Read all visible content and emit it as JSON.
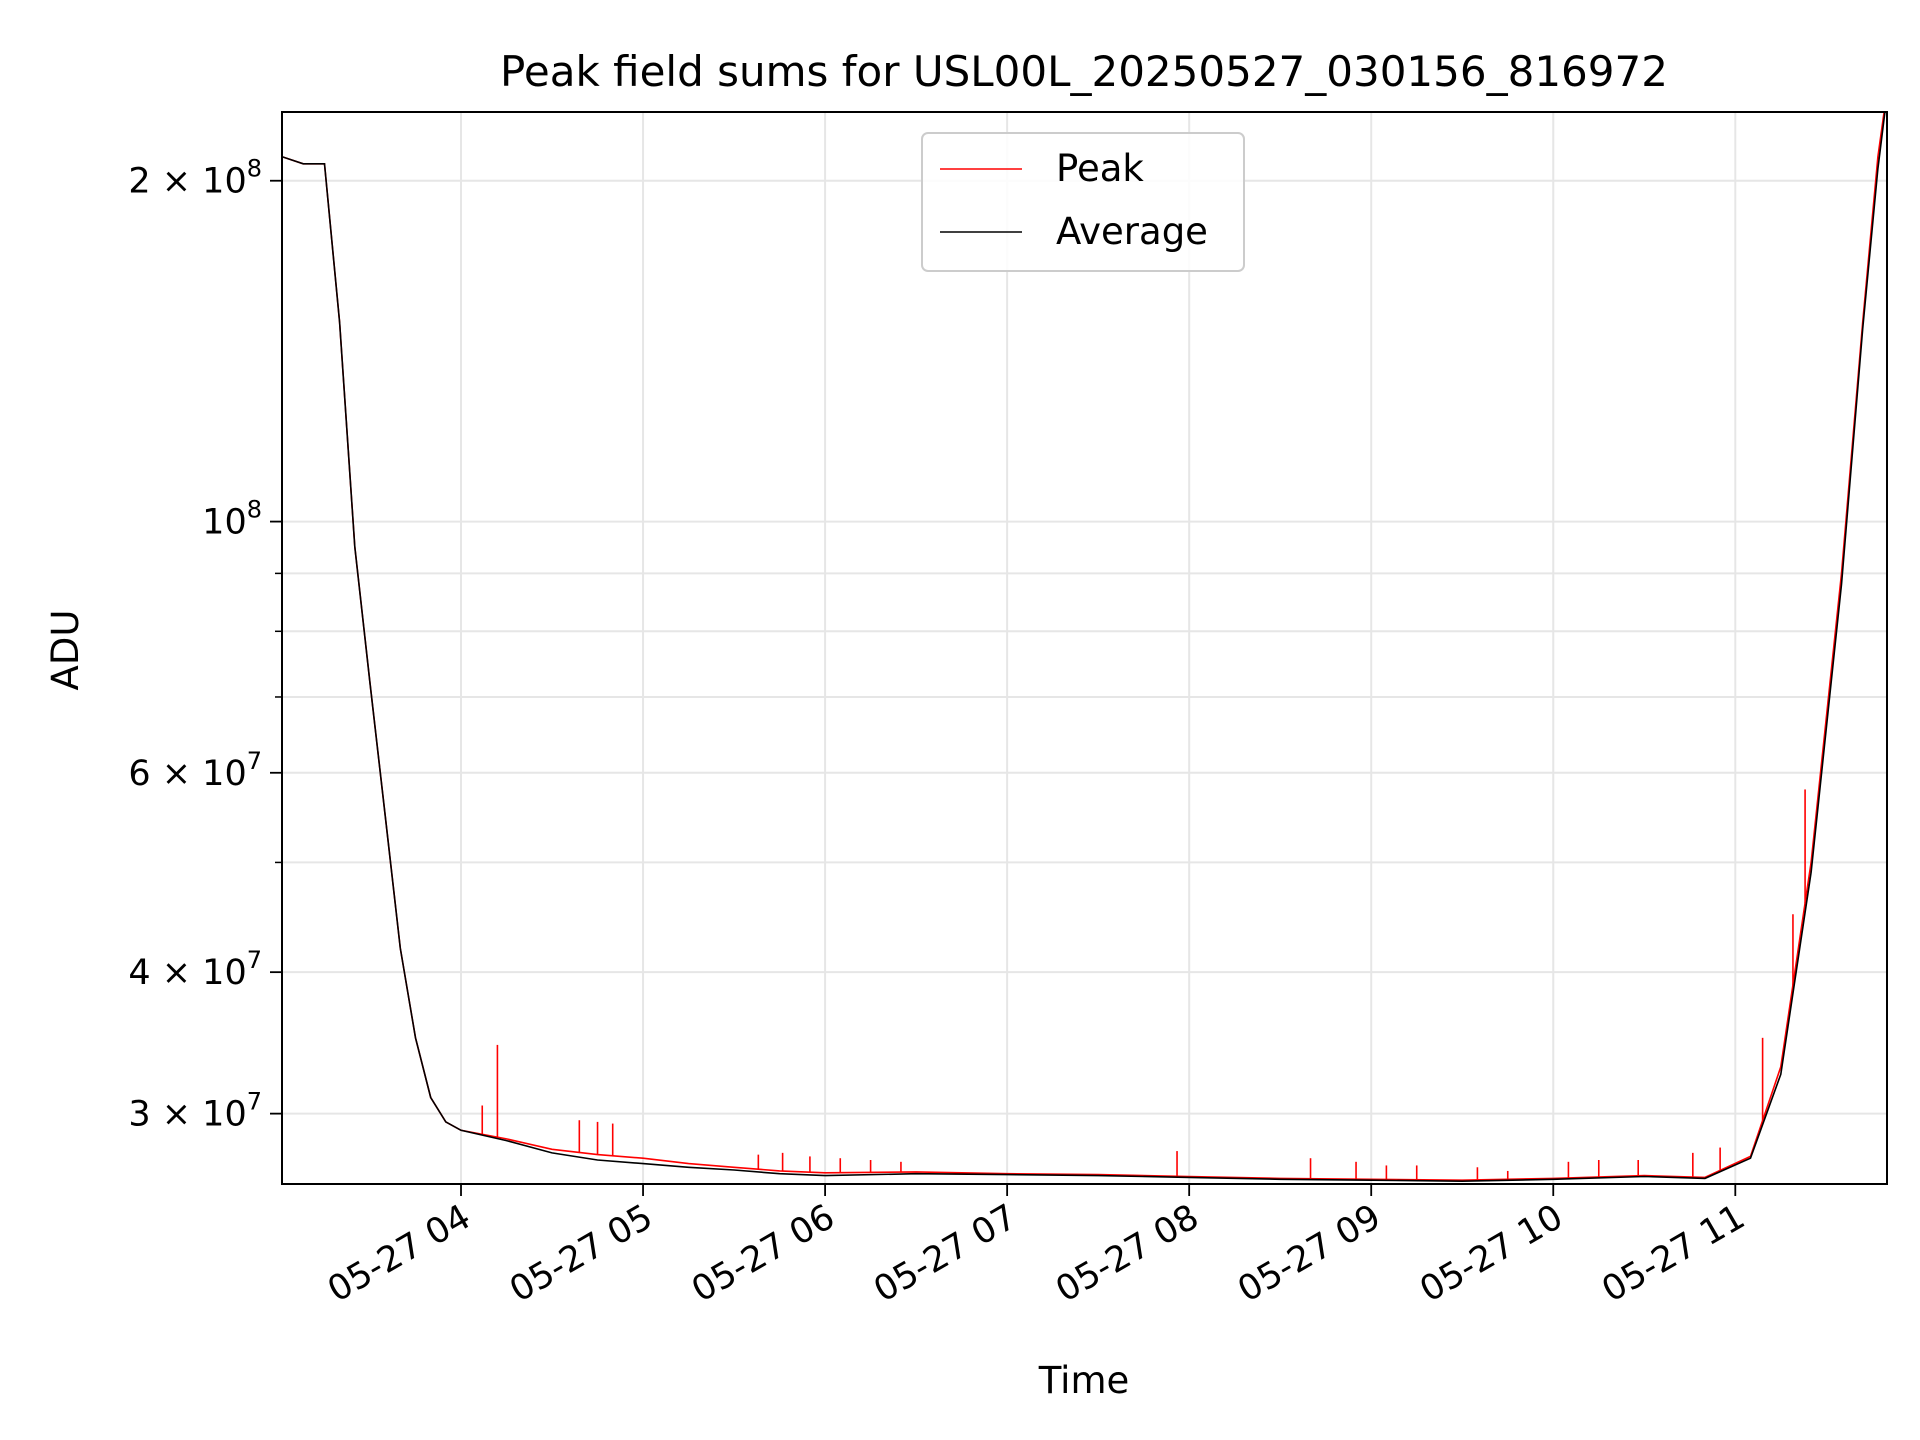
{
  "chart_data": {
    "type": "line",
    "title": "Peak field sums for USL00L_20250527_030156_816972",
    "xlabel": "Time",
    "ylabel": "ADU",
    "yscale": "log",
    "ylim": [
      26000000,
      230000000
    ],
    "xlim": [
      "2025-05-27 03:01",
      "2025-05-27 11:50"
    ],
    "grid": true,
    "legend": "upper center",
    "x_ticks": [
      {
        "label": "05-27 04",
        "time": "2025-05-27 04:00"
      },
      {
        "label": "05-27 05",
        "time": "2025-05-27 05:00"
      },
      {
        "label": "05-27 06",
        "time": "2025-05-27 06:00"
      },
      {
        "label": "05-27 07",
        "time": "2025-05-27 07:00"
      },
      {
        "label": "05-27 08",
        "time": "2025-05-27 08:00"
      },
      {
        "label": "05-27 09",
        "time": "2025-05-27 09:00"
      },
      {
        "label": "05-27 10",
        "time": "2025-05-27 10:00"
      },
      {
        "label": "05-27 11",
        "time": "2025-05-27 11:00"
      }
    ],
    "y_ticks": [
      {
        "value": 30000000,
        "base": "3 × 10",
        "exp": "7"
      },
      {
        "value": 40000000,
        "base": "4 × 10",
        "exp": "7"
      },
      {
        "value": 60000000,
        "base": "6 × 10",
        "exp": "7"
      },
      {
        "value": 100000000,
        "base": "10",
        "exp": "8"
      },
      {
        "value": 200000000,
        "base": "2 × 10",
        "exp": "8"
      }
    ],
    "y_minor": [
      50000000,
      70000000,
      80000000,
      90000000
    ],
    "series": [
      {
        "name": "Peak",
        "color": "#ff0000",
        "x": [
          "2025-05-27 03:01",
          "2025-05-27 03:08",
          "2025-05-27 03:15",
          "2025-05-27 03:20",
          "2025-05-27 03:25",
          "2025-05-27 03:30",
          "2025-05-27 03:35",
          "2025-05-27 03:40",
          "2025-05-27 03:45",
          "2025-05-27 03:50",
          "2025-05-27 03:55",
          "2025-05-27 04:00",
          "2025-05-27 04:15",
          "2025-05-27 04:30",
          "2025-05-27 04:45",
          "2025-05-27 05:00",
          "2025-05-27 05:15",
          "2025-05-27 05:30",
          "2025-05-27 05:45",
          "2025-05-27 06:00",
          "2025-05-27 06:30",
          "2025-05-27 07:00",
          "2025-05-27 07:30",
          "2025-05-27 08:00",
          "2025-05-27 08:30",
          "2025-05-27 09:00",
          "2025-05-27 09:30",
          "2025-05-27 10:00",
          "2025-05-27 10:30",
          "2025-05-27 10:50",
          "2025-05-27 11:05",
          "2025-05-27 11:15",
          "2025-05-27 11:25",
          "2025-05-27 11:35",
          "2025-05-27 11:42",
          "2025-05-27 11:47",
          "2025-05-27 11:50"
        ],
        "y": [
          210000000,
          207000000,
          207000000,
          150000000,
          95000000,
          72000000,
          55000000,
          42000000,
          35000000,
          31000000,
          29500000,
          29000000,
          28500000,
          27900000,
          27600000,
          27400000,
          27100000,
          26900000,
          26700000,
          26600000,
          26650000,
          26550000,
          26500000,
          26400000,
          26300000,
          26250000,
          26200000,
          26300000,
          26450000,
          26350000,
          27500000,
          33000000,
          50000000,
          90000000,
          150000000,
          210000000,
          240000000
        ],
        "spikes": [
          {
            "time": "2025-05-27 04:12",
            "peak": 34500000
          },
          {
            "time": "2025-05-27 04:07",
            "peak": 30500000
          },
          {
            "time": "2025-05-27 04:39",
            "peak": 29600000
          },
          {
            "time": "2025-05-27 04:45",
            "peak": 29500000
          },
          {
            "time": "2025-05-27 04:50",
            "peak": 29400000
          },
          {
            "time": "2025-05-27 05:38",
            "peak": 27600000
          },
          {
            "time": "2025-05-27 05:46",
            "peak": 27700000
          },
          {
            "time": "2025-05-27 05:55",
            "peak": 27500000
          },
          {
            "time": "2025-05-27 06:05",
            "peak": 27400000
          },
          {
            "time": "2025-05-27 06:15",
            "peak": 27300000
          },
          {
            "time": "2025-05-27 06:25",
            "peak": 27200000
          },
          {
            "time": "2025-05-27 07:56",
            "peak": 27800000
          },
          {
            "time": "2025-05-27 08:40",
            "peak": 27400000
          },
          {
            "time": "2025-05-27 08:55",
            "peak": 27200000
          },
          {
            "time": "2025-05-27 09:05",
            "peak": 27000000
          },
          {
            "time": "2025-05-27 09:15",
            "peak": 27000000
          },
          {
            "time": "2025-05-27 09:35",
            "peak": 26900000
          },
          {
            "time": "2025-05-27 09:45",
            "peak": 26700000
          },
          {
            "time": "2025-05-27 10:05",
            "peak": 27200000
          },
          {
            "time": "2025-05-27 10:15",
            "peak": 27300000
          },
          {
            "time": "2025-05-27 10:28",
            "peak": 27300000
          },
          {
            "time": "2025-05-27 10:46",
            "peak": 27700000
          },
          {
            "time": "2025-05-27 10:55",
            "peak": 28000000
          },
          {
            "time": "2025-05-27 11:09",
            "peak": 35000000
          },
          {
            "time": "2025-05-27 11:19",
            "peak": 45000000
          },
          {
            "time": "2025-05-27 11:23",
            "peak": 58000000
          }
        ]
      },
      {
        "name": "Average",
        "color": "#000000",
        "x": [
          "2025-05-27 03:01",
          "2025-05-27 03:08",
          "2025-05-27 03:15",
          "2025-05-27 03:20",
          "2025-05-27 03:25",
          "2025-05-27 03:30",
          "2025-05-27 03:35",
          "2025-05-27 03:40",
          "2025-05-27 03:45",
          "2025-05-27 03:50",
          "2025-05-27 03:55",
          "2025-05-27 04:00",
          "2025-05-27 04:15",
          "2025-05-27 04:30",
          "2025-05-27 04:45",
          "2025-05-27 05:00",
          "2025-05-27 05:15",
          "2025-05-27 05:30",
          "2025-05-27 05:45",
          "2025-05-27 06:00",
          "2025-05-27 06:30",
          "2025-05-27 07:00",
          "2025-05-27 07:30",
          "2025-05-27 08:00",
          "2025-05-27 08:30",
          "2025-05-27 09:00",
          "2025-05-27 09:30",
          "2025-05-27 10:00",
          "2025-05-27 10:30",
          "2025-05-27 10:50",
          "2025-05-27 11:05",
          "2025-05-27 11:15",
          "2025-05-27 11:25",
          "2025-05-27 11:35",
          "2025-05-27 11:42",
          "2025-05-27 11:47",
          "2025-05-27 11:50"
        ],
        "y": [
          210000000,
          207000000,
          207000000,
          150000000,
          95000000,
          72000000,
          55000000,
          42000000,
          35000000,
          31000000,
          29500000,
          29000000,
          28400000,
          27700000,
          27300000,
          27100000,
          26900000,
          26750000,
          26550000,
          26450000,
          26550000,
          26500000,
          26450000,
          26350000,
          26250000,
          26200000,
          26150000,
          26250000,
          26400000,
          26300000,
          27400000,
          32500000,
          49000000,
          88000000,
          148000000,
          205000000,
          238000000
        ]
      }
    ]
  }
}
